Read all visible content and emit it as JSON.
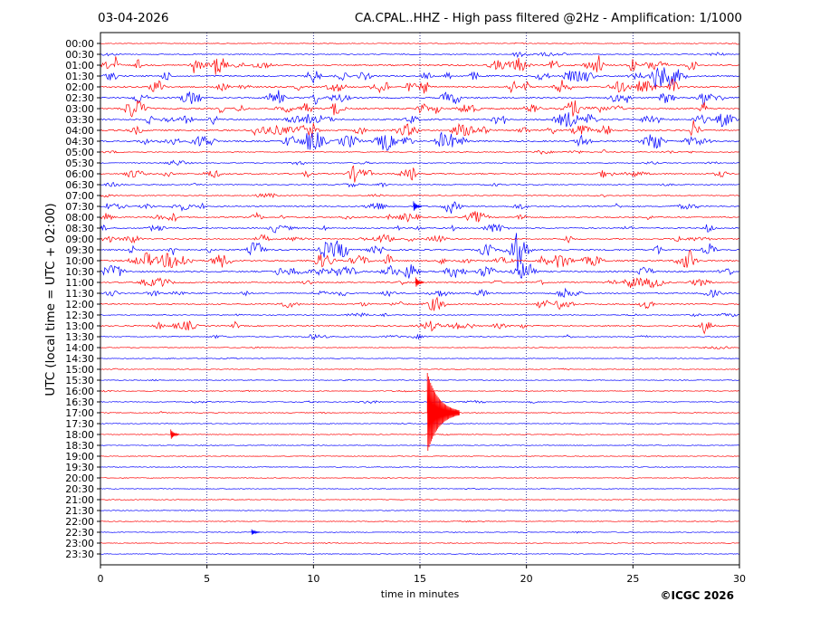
{
  "header": {
    "date": "03-04-2026",
    "title": "CA.CPAL..HHZ - High pass filtered @2Hz - Amplification: 1/1000"
  },
  "axes": {
    "ylabel": "UTC (local time = UTC + 02:00)",
    "xlabel": "time in minutes"
  },
  "credit": "©ICGC 2026",
  "colors": {
    "odd_trace": "#ff0000",
    "even_trace": "#0000ff",
    "grid": "#000080"
  },
  "chart_data": {
    "type": "line",
    "x_ticks": [
      0,
      5,
      10,
      15,
      20,
      25,
      30
    ],
    "xlim": [
      0,
      30
    ],
    "row_labels": [
      "00:00",
      "00:30",
      "01:00",
      "01:30",
      "02:00",
      "02:30",
      "03:00",
      "03:30",
      "04:00",
      "04:30",
      "05:00",
      "05:30",
      "06:00",
      "06:30",
      "07:00",
      "07:30",
      "08:00",
      "08:30",
      "09:00",
      "09:30",
      "10:00",
      "10:30",
      "11:00",
      "11:30",
      "12:00",
      "12:30",
      "13:00",
      "13:30",
      "14:00",
      "14:30",
      "15:00",
      "15:30",
      "16:00",
      "16:30",
      "17:00",
      "17:30",
      "18:00",
      "18:30",
      "19:00",
      "19:30",
      "20:00",
      "20:30",
      "21:00",
      "21:30",
      "22:00",
      "22:30",
      "23:00",
      "23:30"
    ],
    "row_colors": [
      "red",
      "blue"
    ],
    "grid": "vertical dotted at x ticks",
    "noise_level_by_row": [
      0.3,
      1,
      3,
      3,
      3,
      3,
      3,
      3,
      3,
      3,
      1,
      1,
      2,
      1,
      1,
      2,
      2,
      2,
      2,
      3,
      3,
      3,
      2,
      2,
      2,
      1,
      2,
      1,
      0.5,
      0.3,
      0.3,
      0.3,
      0.5,
      0.8,
      0.5,
      0.3,
      0.3,
      0.2,
      0.2,
      0.2,
      0.2,
      0.2,
      0.2,
      0.2,
      0.3,
      0.3,
      0.2,
      0.2
    ],
    "events": [
      {
        "row": 34,
        "x": 15.35,
        "amplitude": "large",
        "note": "earthquake"
      },
      {
        "row": 36,
        "x": 3.3,
        "amplitude": "medium"
      },
      {
        "row": 45,
        "x": 7.1,
        "amplitude": "small"
      },
      {
        "row": 15,
        "x": 14.7,
        "amplitude": "medium"
      },
      {
        "row": 22,
        "x": 14.8,
        "amplitude": "medium"
      }
    ]
  }
}
